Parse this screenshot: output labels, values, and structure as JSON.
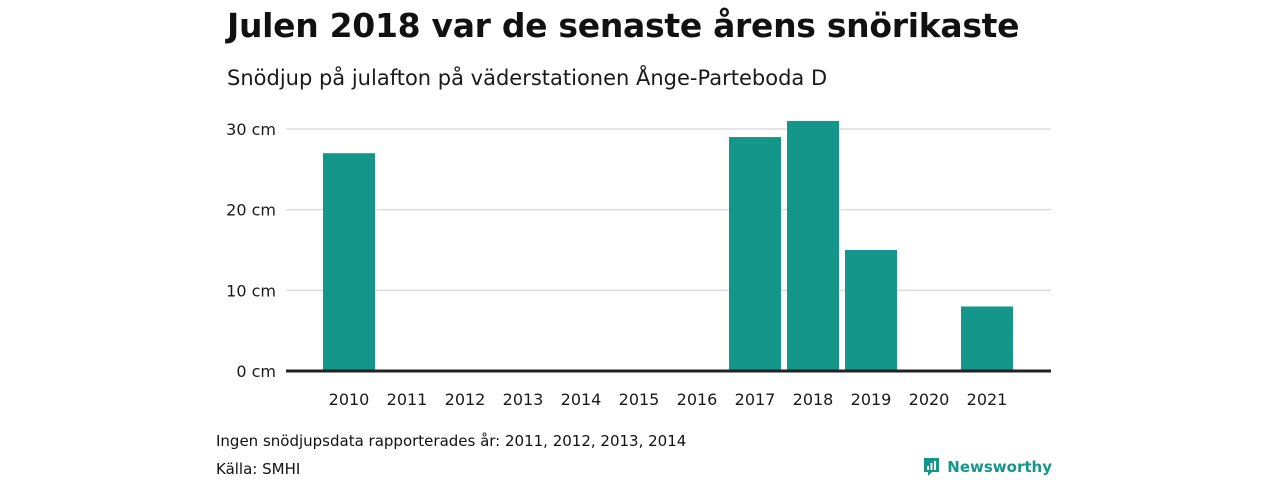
{
  "title": "Julen 2018 var de senaste årens snörikaste",
  "subtitle": "Snödjup på julafton på väderstationen Ånge-Parteboda D",
  "note": "Ingen snödjupsdata rapporterades år: 2011, 2012, 2013, 2014",
  "source": "Källa: SMHI",
  "brand": {
    "name": "Newsworthy",
    "icon": "newsworthy-logo-icon"
  },
  "colors": {
    "bar": "#15968a",
    "gridline": "#dddddd",
    "baseline": "#222222"
  },
  "chart_data": {
    "type": "bar",
    "title": "Julen 2018 var de senaste årens snörikaste",
    "subtitle": "Snödjup på julafton på väderstationen Ånge-Parteboda D",
    "categories": [
      "2010",
      "2011",
      "2012",
      "2013",
      "2014",
      "2015",
      "2016",
      "2017",
      "2018",
      "2019",
      "2020",
      "2021"
    ],
    "values": [
      27,
      null,
      null,
      null,
      null,
      0,
      0,
      29,
      31,
      15,
      0,
      8
    ],
    "ylim": [
      0,
      30
    ],
    "yticks": [
      0,
      10,
      20,
      30
    ],
    "ytick_labels": [
      "0 cm",
      "10 cm",
      "20 cm",
      "30 cm"
    ],
    "grid": true,
    "legend": "none"
  }
}
